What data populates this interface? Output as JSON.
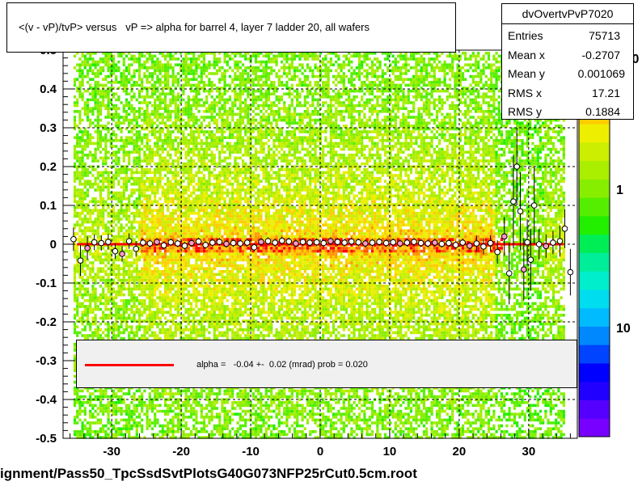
{
  "title": "<(v - vP)/tvP> versus   vP => alpha for barrel 4, layer 7 ladder 20, all wafers",
  "stats": {
    "name": "dvOvertvPvP7020",
    "rows": [
      {
        "key": "Entries",
        "value": "75713"
      },
      {
        "key": "Mean x",
        "value": "-0.2707"
      },
      {
        "key": "Mean y",
        "value": "0.001069"
      },
      {
        "key": "RMS x",
        "value": "17.21"
      },
      {
        "key": "RMS y",
        "value": "0.1884"
      }
    ]
  },
  "legend": {
    "fit_text": "alpha =   -0.04 +-  0.02 (mrad) prob = 0.020",
    "line_color": "#ff0000"
  },
  "footer": "ignment/Pass50_TpcSsdSvtPlotsG40G073NFP25rCut0.5cm.root",
  "colors": {
    "palette": [
      "#7700ff",
      "#5500ff",
      "#2200ff",
      "#0000ff",
      "#0044ff",
      "#0088ff",
      "#00bbff",
      "#00ddee",
      "#00eecc",
      "#00ee99",
      "#00ee55",
      "#22ee00",
      "#55ee00",
      "#88ee00",
      "#aaee00",
      "#ccee00",
      "#eeee00",
      "#ffcc00",
      "#ff9900",
      "#ff5500",
      "#ff0000"
    ],
    "fit_line": "#ff0000",
    "marker_fill": "#ffffff",
    "marker_fill_alt": "#ff99cc"
  },
  "chart_data": {
    "type": "heatmap",
    "xlim": [
      -37,
      37
    ],
    "ylim": [
      -0.5,
      0.5
    ],
    "x_ticks": [
      -30,
      -20,
      -10,
      0,
      10,
      20,
      30
    ],
    "y_ticks": [
      -0.5,
      -0.4,
      -0.3,
      -0.2,
      -0.1,
      0,
      0.1,
      0.2,
      0.3,
      0.4
    ],
    "y_tick_labels": [
      "-0.5",
      "-0.4",
      "-0.3",
      "-0.2",
      "-0.1",
      "0",
      "0.1",
      "0.2",
      "0.3",
      "0.4"
    ],
    "x_tick_labels": [
      "-30",
      "-20",
      "-10",
      "0",
      "10",
      "20",
      "30"
    ],
    "y_top_partial_label": "0.5",
    "grid": true,
    "z_scale": "log",
    "z_tick_labels": [
      "10",
      "1"
    ],
    "z_top_partial_label": "0",
    "fit": {
      "type": "line",
      "x_range": [
        -35,
        35
      ],
      "y": 0.0
    },
    "profile_points": [
      {
        "x": -35.5,
        "y": 0.013,
        "err": 0.03
      },
      {
        "x": -34.5,
        "y": -0.042,
        "err": 0.04
      },
      {
        "x": -33.5,
        "y": -0.01,
        "err": 0.03
      },
      {
        "x": -32.5,
        "y": 0.005,
        "err": 0.02
      },
      {
        "x": -31.5,
        "y": 0.003,
        "err": 0.02
      },
      {
        "x": -30.5,
        "y": 0.006,
        "err": 0.02
      },
      {
        "x": -29.5,
        "y": -0.018,
        "err": 0.02
      },
      {
        "x": -28.5,
        "y": -0.025,
        "err": 0.02
      },
      {
        "x": -27.5,
        "y": 0.008,
        "err": 0.02
      },
      {
        "x": -26.5,
        "y": -0.012,
        "err": 0.02
      },
      {
        "x": -25.5,
        "y": 0.004,
        "err": 0.01
      },
      {
        "x": -24.5,
        "y": 0.002,
        "err": 0.01
      },
      {
        "x": -23.5,
        "y": 0.006,
        "err": 0.01
      },
      {
        "x": -22.5,
        "y": -0.003,
        "err": 0.01
      },
      {
        "x": -21.5,
        "y": 0.005,
        "err": 0.01
      },
      {
        "x": -20.5,
        "y": 0.002,
        "err": 0.01
      },
      {
        "x": -19.5,
        "y": -0.004,
        "err": 0.01
      },
      {
        "x": -18.5,
        "y": 0.003,
        "err": 0.01
      },
      {
        "x": -17.5,
        "y": 0.007,
        "err": 0.01
      },
      {
        "x": -16.5,
        "y": -0.002,
        "err": 0.01
      },
      {
        "x": -15.5,
        "y": 0.004,
        "err": 0.01
      },
      {
        "x": -14.5,
        "y": 0.006,
        "err": 0.01
      },
      {
        "x": -13.5,
        "y": 0.001,
        "err": 0.01
      },
      {
        "x": -12.5,
        "y": 0.003,
        "err": 0.01
      },
      {
        "x": -11.5,
        "y": 0.002,
        "err": 0.01
      },
      {
        "x": -10.5,
        "y": 0.004,
        "err": 0.01
      },
      {
        "x": -9.5,
        "y": -0.008,
        "err": 0.01
      },
      {
        "x": -8.5,
        "y": 0.006,
        "err": 0.01
      },
      {
        "x": -7.5,
        "y": 0.008,
        "err": 0.01
      },
      {
        "x": -6.5,
        "y": 0.004,
        "err": 0.01
      },
      {
        "x": -5.5,
        "y": 0.009,
        "err": 0.01
      },
      {
        "x": -4.5,
        "y": 0.007,
        "err": 0.01
      },
      {
        "x": -3.5,
        "y": 0.002,
        "err": 0.01
      },
      {
        "x": -2.5,
        "y": 0.006,
        "err": 0.01
      },
      {
        "x": -1.5,
        "y": 0.004,
        "err": 0.01
      },
      {
        "x": -0.5,
        "y": 0.005,
        "err": 0.01
      },
      {
        "x": 0.5,
        "y": 0.003,
        "err": 0.01
      },
      {
        "x": 1.5,
        "y": 0.008,
        "err": 0.01
      },
      {
        "x": 2.5,
        "y": 0.006,
        "err": 0.01
      },
      {
        "x": 3.5,
        "y": 0.004,
        "err": 0.01
      },
      {
        "x": 4.5,
        "y": 0.007,
        "err": 0.01
      },
      {
        "x": 5.5,
        "y": 0.005,
        "err": 0.01
      },
      {
        "x": 6.5,
        "y": 0.002,
        "err": 0.01
      },
      {
        "x": 7.5,
        "y": 0.004,
        "err": 0.01
      },
      {
        "x": 8.5,
        "y": 0.006,
        "err": 0.01
      },
      {
        "x": 9.5,
        "y": 0.003,
        "err": 0.01
      },
      {
        "x": 10.5,
        "y": 0.005,
        "err": 0.01
      },
      {
        "x": 11.5,
        "y": 0.002,
        "err": 0.01
      },
      {
        "x": 12.5,
        "y": 0.004,
        "err": 0.01
      },
      {
        "x": 13.5,
        "y": 0.006,
        "err": 0.01
      },
      {
        "x": 14.5,
        "y": 0.003,
        "err": 0.01
      },
      {
        "x": 15.5,
        "y": 0.002,
        "err": 0.01
      },
      {
        "x": 16.5,
        "y": 0.004,
        "err": 0.01
      },
      {
        "x": 17.5,
        "y": 0.001,
        "err": 0.01
      },
      {
        "x": 18.5,
        "y": 0.003,
        "err": 0.01
      },
      {
        "x": 19.5,
        "y": -0.002,
        "err": 0.01
      },
      {
        "x": 20.5,
        "y": 0.004,
        "err": 0.01
      },
      {
        "x": 21.5,
        "y": -0.004,
        "err": 0.01
      },
      {
        "x": 22.5,
        "y": 0.002,
        "err": 0.02
      },
      {
        "x": 23.5,
        "y": -0.006,
        "err": 0.02
      },
      {
        "x": 24.5,
        "y": 0.003,
        "err": 0.02
      },
      {
        "x": 25.5,
        "y": -0.02,
        "err": 0.03
      },
      {
        "x": 26.5,
        "y": 0.02,
        "err": 0.05
      },
      {
        "x": 27.2,
        "y": -0.075,
        "err": 0.08
      },
      {
        "x": 27.8,
        "y": 0.11,
        "err": 0.12
      },
      {
        "x": 28.3,
        "y": 0.2,
        "err": 0.1
      },
      {
        "x": 28.8,
        "y": 0.085,
        "err": 0.1
      },
      {
        "x": 29.3,
        "y": -0.065,
        "err": 0.08
      },
      {
        "x": 29.8,
        "y": 0.005,
        "err": 0.06
      },
      {
        "x": 30.3,
        "y": -0.04,
        "err": 0.08
      },
      {
        "x": 30.8,
        "y": 0.1,
        "err": 0.1
      },
      {
        "x": 31.5,
        "y": 0.0,
        "err": 0.04
      },
      {
        "x": 32.5,
        "y": -0.005,
        "err": 0.03
      },
      {
        "x": 33.5,
        "y": 0.004,
        "err": 0.03
      },
      {
        "x": 34.5,
        "y": 0.008,
        "err": 0.04
      },
      {
        "x": 35.2,
        "y": 0.04,
        "err": 0.05
      },
      {
        "x": 36.0,
        "y": -0.072,
        "err": 0.06
      }
    ]
  }
}
